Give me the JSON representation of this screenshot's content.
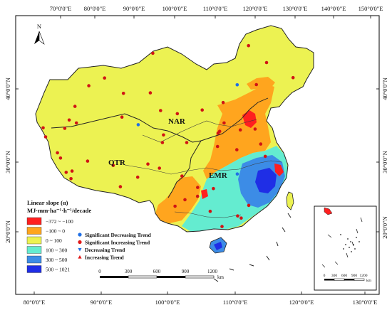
{
  "axes": {
    "top_lon_labels": [
      "70°0'0\"E",
      "80°0'0\"E",
      "90°0'0\"E",
      "100°0'0\"E",
      "110°0'0\"E",
      "120°0'0\"E",
      "130°0'0\"E",
      "140°0'0\"E",
      "150°0'0\"E"
    ],
    "bottom_lon_labels": [
      "80°0'0\"E",
      "90°0'0\"E",
      "100°0'0\"E",
      "110°0'0\"E",
      "120°0'0\"E",
      "130°0'0\"E"
    ],
    "left_lat_labels": [
      "40°0'0\"N",
      "30°0'0\"N",
      "20°0'0\"N"
    ],
    "right_lat_labels": [
      "40°0'0\"N",
      "30°0'0\"N",
      "20°0'0\"N"
    ]
  },
  "north_arrow": {
    "label": "N"
  },
  "regions": [
    {
      "id": "NAR",
      "label": "NAR"
    },
    {
      "id": "QTR",
      "label": "QTR"
    },
    {
      "id": "EMR",
      "label": "EMR"
    }
  ],
  "legend": {
    "title_line1": "Linear slope (α)",
    "title_line2": "MJ·mm·ha⁻¹·h⁻¹/decade",
    "classes": [
      {
        "label": "−372 ~ −100",
        "color": "#ff1f1f"
      },
      {
        "label": "−100 ~ 0",
        "color": "#ffa51e"
      },
      {
        "label": "0 ~ 100",
        "color": "#ecf252"
      },
      {
        "label": "100 ~ 300",
        "color": "#64ecd0"
      },
      {
        "label": "300 ~ 500",
        "color": "#3c8ce6"
      },
      {
        "label": "500 ~ 1021",
        "color": "#1f2ee6"
      }
    ],
    "symbols": [
      {
        "label": "Significant Decreasing Trend",
        "shape": "circle",
        "color": "#1f6fe6"
      },
      {
        "label": "Significant Increasing Trend",
        "shape": "circle",
        "color": "#e01818"
      },
      {
        "label": "Decreasing Trend",
        "shape": "triangle-down",
        "color": "#1f6fe6"
      },
      {
        "label": "Increasing Trend",
        "shape": "triangle-up",
        "color": "#e01818"
      }
    ]
  },
  "scale_bar": {
    "ticks": [
      "0",
      "300",
      "600",
      "900",
      "1200"
    ],
    "unit": "km"
  },
  "inset": {
    "scale_ticks": [
      "0",
      "300",
      "600",
      "900",
      "1200"
    ],
    "unit": "km"
  },
  "colors": {
    "border": "#000000",
    "boundary": "#222222",
    "river": "#3a3a3a"
  }
}
